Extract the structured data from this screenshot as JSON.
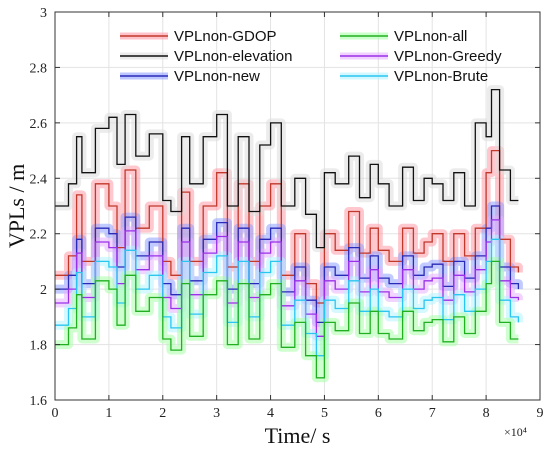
{
  "chart_data": {
    "type": "line",
    "title": "",
    "xlabel": "Time/ s",
    "ylabel": "VPLs / m",
    "x_exponent_label": "×10⁴",
    "x_scale_factor": 10000,
    "xlim": [
      0,
      9
    ],
    "ylim": [
      1.6,
      3.0
    ],
    "x_ticks": [
      "0",
      "1",
      "2",
      "3",
      "4",
      "5",
      "6",
      "7",
      "8",
      "9"
    ],
    "y_ticks": [
      "1.6",
      "1.8",
      "2",
      "2.2",
      "2.4",
      "2.6",
      "2.8",
      "3"
    ],
    "grid": true,
    "legend_position": "top",
    "x": [
      0,
      0.25,
      0.4,
      0.5,
      0.75,
      1.0,
      1.15,
      1.3,
      1.5,
      1.75,
      2.0,
      2.15,
      2.35,
      2.5,
      2.75,
      3.0,
      3.2,
      3.4,
      3.6,
      3.8,
      4.0,
      4.2,
      4.45,
      4.65,
      4.85,
      5.0,
      5.2,
      5.45,
      5.65,
      5.85,
      6.0,
      6.2,
      6.45,
      6.65,
      6.85,
      7.0,
      7.2,
      7.4,
      7.6,
      7.8,
      8.0,
      8.1,
      8.25,
      8.45,
      8.6
    ],
    "series": [
      {
        "name": "VPLnon-GDOP",
        "color": "#c0392b",
        "glow": "#ff9aa8",
        "values": [
          2.05,
          2.12,
          2.34,
          2.1,
          2.38,
          2.3,
          2.15,
          2.43,
          2.22,
          2.3,
          2.1,
          2.05,
          2.35,
          2.1,
          2.3,
          2.42,
          2.08,
          2.38,
          2.1,
          2.3,
          2.38,
          2.05,
          2.2,
          2.02,
          1.95,
          2.2,
          2.14,
          2.28,
          2.13,
          2.22,
          2.14,
          2.1,
          2.22,
          2.13,
          2.17,
          2.2,
          2.1,
          2.2,
          2.12,
          2.22,
          2.42,
          2.5,
          2.18,
          2.08,
          2.06
        ]
      },
      {
        "name": "VPLnon-elevation",
        "color": "#111111",
        "glow": "#dddddd",
        "values": [
          2.3,
          2.38,
          2.55,
          2.42,
          2.58,
          2.62,
          2.45,
          2.63,
          2.48,
          2.56,
          2.32,
          2.28,
          2.55,
          2.38,
          2.55,
          2.63,
          2.3,
          2.55,
          2.28,
          2.52,
          2.6,
          2.3,
          2.4,
          2.27,
          2.15,
          2.42,
          2.38,
          2.48,
          2.33,
          2.45,
          2.38,
          2.3,
          2.44,
          2.32,
          2.4,
          2.38,
          2.32,
          2.42,
          2.3,
          2.6,
          2.55,
          2.72,
          2.43,
          2.32,
          2.32
        ]
      },
      {
        "name": "VPLnon-new",
        "color": "#2a2ab8",
        "glow": "#8fa0ff",
        "values": [
          2.0,
          2.05,
          2.18,
          2.02,
          2.22,
          2.2,
          2.08,
          2.26,
          2.12,
          2.17,
          2.02,
          1.98,
          2.22,
          2.03,
          2.18,
          2.24,
          2.0,
          2.22,
          2.02,
          2.18,
          2.22,
          1.99,
          2.08,
          1.96,
          1.88,
          2.08,
          2.05,
          2.15,
          2.04,
          2.12,
          2.04,
          2.02,
          2.12,
          2.05,
          2.08,
          2.09,
          2.01,
          2.1,
          2.04,
          2.12,
          2.22,
          2.3,
          2.08,
          2.02,
          2.0
        ]
      },
      {
        "name": "VPLnon-all",
        "color": "#22b022",
        "glow": "#a8ffa8",
        "values": [
          1.8,
          1.86,
          1.98,
          1.82,
          2.03,
          2.0,
          1.87,
          2.05,
          1.92,
          1.97,
          1.82,
          1.78,
          2.02,
          1.83,
          1.98,
          2.03,
          1.8,
          2.02,
          1.82,
          1.98,
          2.02,
          1.79,
          1.88,
          1.76,
          1.68,
          1.88,
          1.85,
          1.95,
          1.84,
          1.92,
          1.84,
          1.82,
          1.92,
          1.85,
          1.88,
          1.89,
          1.81,
          1.9,
          1.84,
          1.92,
          2.02,
          2.1,
          1.88,
          1.82,
          1.82
        ]
      },
      {
        "name": "VPLnon-Greedy",
        "color": "#9b30e8",
        "glow": "#e6b3ff",
        "values": [
          1.95,
          2.0,
          2.13,
          1.97,
          2.17,
          2.15,
          2.02,
          2.21,
          2.07,
          2.12,
          1.97,
          1.93,
          2.17,
          1.98,
          2.13,
          2.19,
          1.95,
          2.17,
          1.97,
          2.13,
          2.17,
          1.94,
          2.03,
          1.91,
          1.83,
          2.03,
          2.0,
          2.1,
          1.99,
          2.07,
          1.99,
          1.97,
          2.07,
          2.0,
          2.03,
          2.04,
          1.96,
          2.05,
          1.99,
          2.07,
          2.17,
          2.25,
          2.03,
          1.97,
          1.96
        ]
      },
      {
        "name": "VPLnon-Brute",
        "color": "#2bc6f0",
        "glow": "#b5f3ff",
        "values": [
          1.87,
          1.93,
          2.06,
          1.9,
          2.1,
          2.08,
          1.95,
          2.14,
          2.0,
          2.05,
          1.9,
          1.86,
          2.1,
          1.91,
          2.06,
          2.12,
          1.88,
          2.1,
          1.9,
          2.06,
          2.1,
          1.87,
          1.96,
          1.84,
          1.76,
          1.96,
          1.93,
          2.03,
          1.92,
          2.0,
          1.92,
          1.9,
          2.0,
          1.93,
          1.96,
          1.97,
          1.89,
          1.98,
          1.92,
          2.0,
          2.1,
          2.18,
          1.96,
          1.9,
          1.88
        ]
      }
    ]
  }
}
